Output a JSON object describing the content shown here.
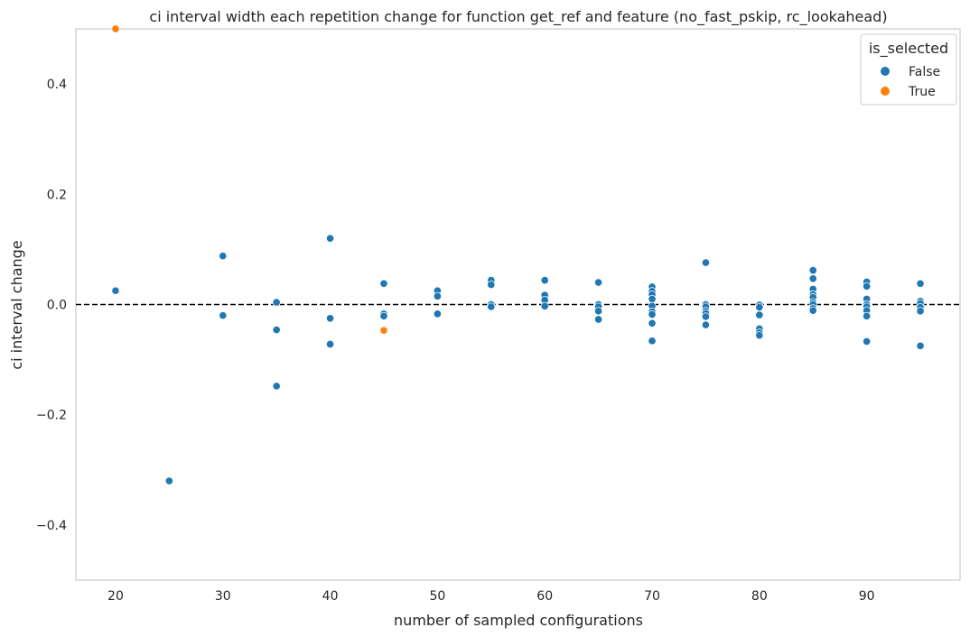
{
  "chart_data": {
    "type": "scatter",
    "title": "ci interval width each repetition change for function get_ref and feature (no_fast_pskip, rc_lookahead)",
    "xlabel": "number of sampled configurations",
    "ylabel": "ci interval change",
    "xlim": [
      16.3,
      98.7
    ],
    "ylim": [
      -0.5,
      0.5
    ],
    "xticks": [
      20,
      30,
      40,
      50,
      60,
      70,
      80,
      90
    ],
    "yticks": [
      -0.4,
      -0.2,
      0.0,
      0.2,
      0.4
    ],
    "ytick_labels": [
      "−0.4",
      "−0.2",
      "0.0",
      "0.2",
      "0.4"
    ],
    "grid": false,
    "reference_line": {
      "y": 0.0,
      "style": "dashed",
      "color": "#000000"
    },
    "legend": {
      "title": "is_selected",
      "placement": "upper-right"
    },
    "series": [
      {
        "name": "False",
        "color": "#1f77b4",
        "points": [
          [
            20,
            0.025
          ],
          [
            25,
            -0.32
          ],
          [
            30,
            0.088
          ],
          [
            30,
            -0.02
          ],
          [
            35,
            0.004
          ],
          [
            35,
            -0.046
          ],
          [
            35,
            -0.148
          ],
          [
            40,
            0.12
          ],
          [
            40,
            -0.025
          ],
          [
            40,
            -0.072
          ],
          [
            45,
            0.038
          ],
          [
            45,
            -0.017
          ],
          [
            45,
            -0.021
          ],
          [
            50,
            0.025
          ],
          [
            50,
            0.015
          ],
          [
            50,
            -0.017
          ],
          [
            55,
            0.044
          ],
          [
            55,
            0.036
          ],
          [
            55,
            0.0
          ],
          [
            55,
            -0.004
          ],
          [
            60,
            0.044
          ],
          [
            60,
            0.017
          ],
          [
            60,
            0.008
          ],
          [
            60,
            -0.003
          ],
          [
            65,
            0.04
          ],
          [
            65,
            0.0
          ],
          [
            65,
            -0.004
          ],
          [
            65,
            -0.012
          ],
          [
            65,
            -0.027
          ],
          [
            70,
            0.032
          ],
          [
            70,
            0.024
          ],
          [
            70,
            0.018
          ],
          [
            70,
            0.01
          ],
          [
            70,
            -0.003
          ],
          [
            70,
            -0.013
          ],
          [
            70,
            -0.018
          ],
          [
            70,
            -0.034
          ],
          [
            70,
            -0.066
          ],
          [
            75,
            0.076
          ],
          [
            75,
            0.0
          ],
          [
            75,
            -0.004
          ],
          [
            75,
            -0.012
          ],
          [
            75,
            -0.016
          ],
          [
            75,
            -0.022
          ],
          [
            75,
            -0.037
          ],
          [
            80,
            -0.001
          ],
          [
            80,
            -0.005
          ],
          [
            80,
            -0.019
          ],
          [
            80,
            -0.044
          ],
          [
            80,
            -0.051
          ],
          [
            80,
            -0.056
          ],
          [
            85,
            0.062
          ],
          [
            85,
            0.047
          ],
          [
            85,
            0.028
          ],
          [
            85,
            0.018
          ],
          [
            85,
            0.013
          ],
          [
            85,
            0.004
          ],
          [
            85,
            0.0
          ],
          [
            85,
            -0.007
          ],
          [
            85,
            -0.011
          ],
          [
            90,
            0.041
          ],
          [
            90,
            0.033
          ],
          [
            90,
            0.01
          ],
          [
            90,
            0.0
          ],
          [
            90,
            -0.004
          ],
          [
            90,
            -0.011
          ],
          [
            90,
            -0.021
          ],
          [
            90,
            -0.067
          ],
          [
            95,
            0.038
          ],
          [
            95,
            0.006
          ],
          [
            95,
            0.002
          ],
          [
            95,
            -0.005
          ],
          [
            95,
            -0.012
          ],
          [
            95,
            -0.075
          ]
        ]
      },
      {
        "name": "True",
        "color": "#ff7f0e",
        "points": [
          [
            20,
            0.5
          ],
          [
            45,
            -0.047
          ]
        ]
      }
    ]
  }
}
